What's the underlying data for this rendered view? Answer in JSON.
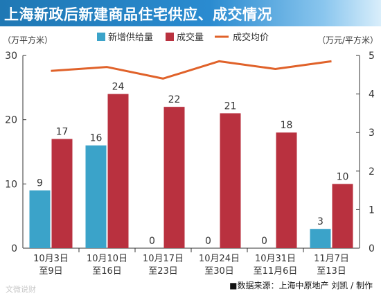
{
  "title": "上海新政后新建商品住宅供应、成交情况",
  "source_note": "■数据来源：上海中原地产 刘凯 / 制作",
  "watermark": "文微说财",
  "chart_data": {
    "type": "bar",
    "title": "上海新政后新建商品住宅供应、成交情况",
    "categories": [
      [
        "10月3日",
        "至9日"
      ],
      [
        "10月10日",
        "至16日"
      ],
      [
        "10月17日",
        "至23日"
      ],
      [
        "10月24日",
        "至30日"
      ],
      [
        "10月31日",
        "至11月6日"
      ],
      [
        "11月7日",
        "至13日"
      ]
    ],
    "y_left_label": "（万平方米）",
    "y_right_label": "（万元/平方米）",
    "y_left_lim": [
      0,
      30
    ],
    "y_left_ticks": [
      0,
      10,
      20,
      30
    ],
    "y_right_lim": [
      0,
      5
    ],
    "y_right_ticks": [
      0,
      1,
      2,
      3,
      4,
      5
    ],
    "series": [
      {
        "name": "新增供给量",
        "type": "bar",
        "axis": "left",
        "color": "#3ba3c9",
        "values": [
          9,
          16,
          0,
          0,
          0,
          3
        ]
      },
      {
        "name": "成交量",
        "type": "bar",
        "axis": "left",
        "color": "#b9313f",
        "values": [
          17,
          24,
          22,
          21,
          18,
          10
        ]
      },
      {
        "name": "成交均价",
        "type": "line",
        "axis": "right",
        "color": "#e0622a",
        "values": [
          4.6,
          4.7,
          4.4,
          4.85,
          4.65,
          4.85
        ]
      }
    ],
    "legend_position": "top",
    "grid": false
  }
}
